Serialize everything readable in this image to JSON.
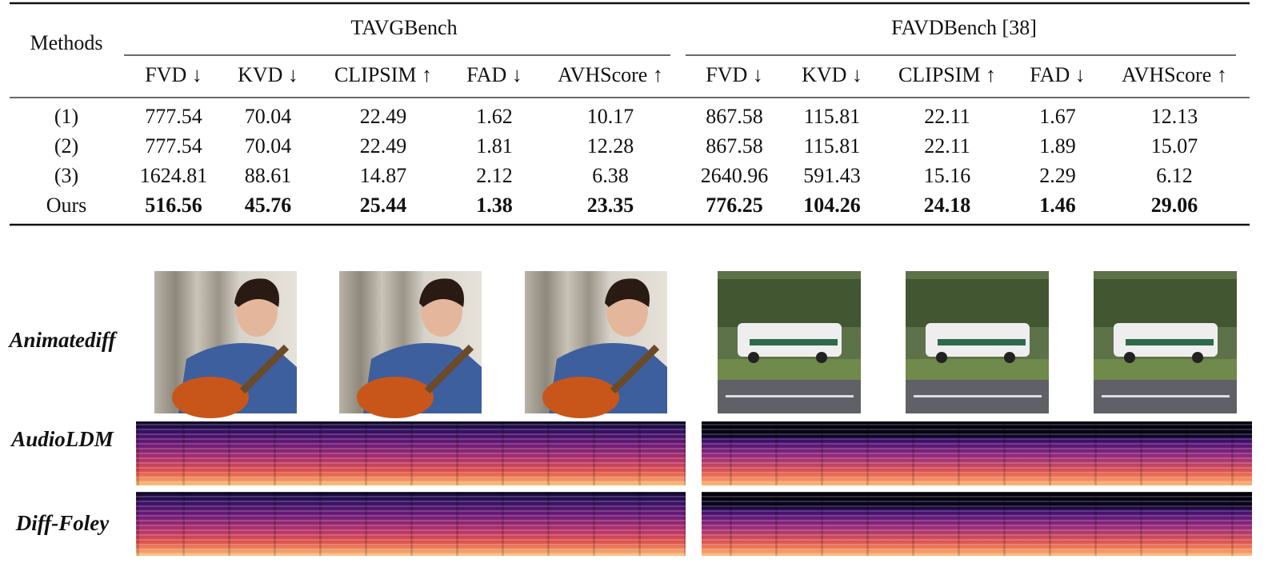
{
  "table": {
    "header_label": "Methods",
    "groups": [
      "TAVGBench",
      "FAVDBench [38]"
    ],
    "columns": [
      "FVD ↓",
      "KVD ↓",
      "CLIPSIM ↑",
      "FAD ↓",
      "AVHScore ↑",
      "FVD ↓",
      "KVD ↓",
      "CLIPSIM ↑",
      "FAD ↓",
      "AVHScore ↑"
    ],
    "rows": [
      [
        "(1)",
        "777.54",
        "70.04",
        "22.49",
        "1.62",
        "10.17",
        "867.58",
        "115.81",
        "22.11",
        "1.67",
        "12.13"
      ],
      [
        "(2)",
        "777.54",
        "70.04",
        "22.49",
        "1.81",
        "12.28",
        "867.58",
        "115.81",
        "22.11",
        "1.89",
        "15.07"
      ],
      [
        "(3)",
        "1624.81",
        "88.61",
        "14.87",
        "2.12",
        "6.38",
        "2640.96",
        "591.43",
        "15.16",
        "2.29",
        "6.12"
      ],
      [
        "Ours",
        "516.56",
        "45.76",
        "25.44",
        "1.38",
        "23.35",
        "776.25",
        "104.26",
        "24.18",
        "1.46",
        "29.06"
      ]
    ]
  },
  "figure": {
    "row_labels": [
      "Animatediff",
      "AudioLDM",
      "Diff-Foley"
    ]
  }
}
